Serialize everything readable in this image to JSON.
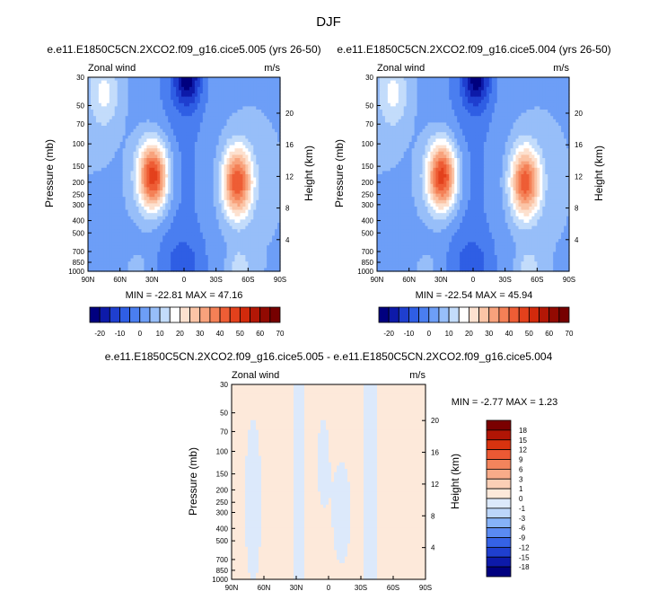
{
  "chart_data": {
    "type": "heatmap",
    "title": "DJF",
    "panels": [
      {
        "id": "top-left",
        "title": "e.e11.E1850C5CN.2XCO2.f09_g16.cice5.005 (yrs 26-50)",
        "variable": "Zonal wind",
        "units": "m/s",
        "ylabel": "Pressure (mb)",
        "y2label": "Height (km)",
        "stats": "MIN = -22.81  MAX = 47.16",
        "min": -22.81,
        "max": 47.16,
        "jets": [
          {
            "lat": 29,
            "pres": 180,
            "peak": 47
          },
          {
            "lat": -50,
            "pres": 200,
            "peak": 40
          },
          {
            "lat": 75,
            "pres": 40,
            "peak": 12
          }
        ],
        "easterly_min": -22.8
      },
      {
        "id": "top-right",
        "title": "e.e11.E1850C5CN.2XCO2.f09_g16.cice5.004 (yrs 26-50)",
        "variable": "Zonal wind",
        "units": "m/s",
        "ylabel": "Pressure (mb)",
        "y2label": "Height (km)",
        "stats": "MIN = -22.54  MAX = 45.94",
        "min": -22.54,
        "max": 45.94,
        "jets": [
          {
            "lat": 29,
            "pres": 180,
            "peak": 46
          },
          {
            "lat": -49,
            "pres": 200,
            "peak": 39
          },
          {
            "lat": 75,
            "pres": 40,
            "peak": 12
          }
        ],
        "easterly_min": -22.5
      },
      {
        "id": "difference",
        "title": "e.e11.E1850C5CN.2XCO2.f09_g16.cice5.005 - e.e11.E1850C5CN.2XCO2.f09_g16.cice5.004",
        "variable": "Zonal wind",
        "units": "m/s",
        "ylabel": "Pressure (mb)",
        "y2label": "Height (km)",
        "stats": "MIN = -2.77  MAX =  1.23",
        "min": -2.77,
        "max": 1.23,
        "pattern": "alternating bands: positive (0 to 1) at 90N-80N, 55N-30N, 25N-10N, 45S-90S; negative (-1 to 0) elsewhere"
      }
    ],
    "x_ticks": [
      "90N",
      "60N",
      "30N",
      "0",
      "30S",
      "60S",
      "90S"
    ],
    "lat_range": [
      90,
      -90
    ],
    "p_ticks": [
      "30",
      "50",
      "70",
      "100",
      "150",
      "200",
      "250",
      "300",
      "400",
      "500",
      "700",
      "850",
      "1000"
    ],
    "p_range": [
      30,
      1000
    ],
    "km_ticks": [
      "4",
      "8",
      "12",
      "16",
      "20"
    ],
    "top_colorbar": {
      "orientation": "horizontal",
      "levels": [
        -25,
        -20,
        -15,
        -10,
        -5,
        0,
        5,
        10,
        15,
        20,
        25,
        30,
        35,
        40,
        45,
        50,
        55,
        60,
        65,
        70
      ],
      "labels": [
        "-20",
        "-10",
        "0",
        "10",
        "20",
        "30",
        "40",
        "50",
        "60",
        "70"
      ],
      "colors": [
        "#00007f",
        "#0d1aa9",
        "#1f3fcf",
        "#2f5ee4",
        "#4a7ef0",
        "#6d9ef7",
        "#97bef9",
        "#c3dcfb",
        "#ffffff",
        "#fde1cf",
        "#fbc4a6",
        "#f8a27c",
        "#f48056",
        "#ee5d35",
        "#e3411c",
        "#d22a0c",
        "#b31706",
        "#920a02",
        "#760000"
      ]
    },
    "diff_colorbar": {
      "orientation": "vertical",
      "levels": [
        -18,
        -15,
        -12,
        -9,
        -6,
        -3,
        -1,
        0,
        1,
        3,
        6,
        9,
        12,
        15,
        18
      ],
      "labels": [
        "18",
        "15",
        "12",
        "9",
        "6",
        "3",
        "1",
        "0",
        "-1",
        "-3",
        "-6",
        "-9",
        "-12",
        "-15",
        "-18"
      ],
      "colors": [
        "#00007f",
        "#0d1aa9",
        "#1f3fcf",
        "#3562e6",
        "#5a8af2",
        "#86b2f8",
        "#bcd6fa",
        "#dce9fb",
        "#fde9da",
        "#fbcfb6",
        "#f8ab89",
        "#f3845c",
        "#eb5934",
        "#d7330f",
        "#b01505",
        "#7a0000"
      ]
    }
  }
}
